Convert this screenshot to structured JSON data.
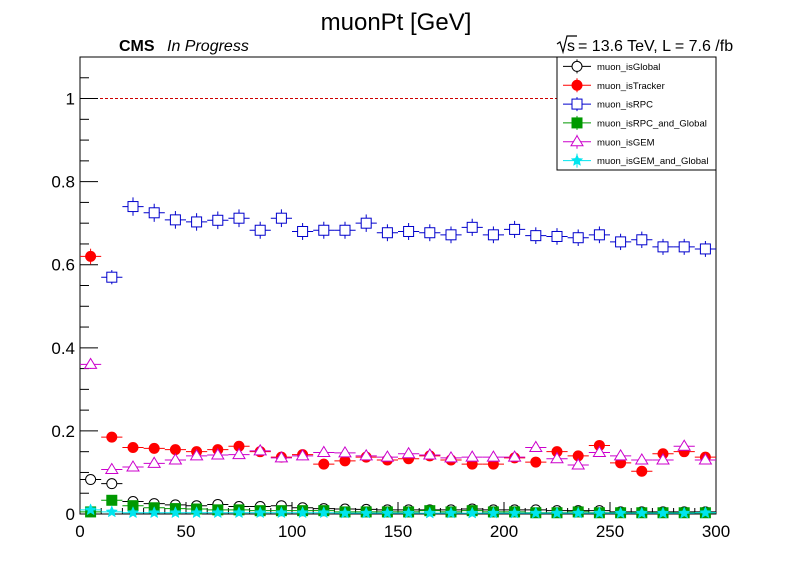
{
  "chart_data": {
    "type": "scatter",
    "title": "muonPt [GeV]",
    "cms_label": "CMS",
    "cms_sublabel": "In Progress",
    "energy_label": "= 13.6 TeV, L = 7.6 /fb",
    "sqrt_s_label": "s",
    "xlim": [
      0,
      300
    ],
    "ylim": [
      0,
      1.1
    ],
    "x_ticks": [
      0,
      50,
      100,
      150,
      200,
      250,
      300
    ],
    "x_tick_labels": [
      "0",
      "50",
      "100",
      "150",
      "200",
      "250",
      "300"
    ],
    "y_ticks": [
      0,
      0.2,
      0.4,
      0.6,
      0.8,
      1
    ],
    "y_tick_labels": [
      "0",
      "0.2",
      "0.4",
      "0.6",
      "0.8",
      "1"
    ],
    "reference_line": 1.0,
    "legend_position": "top-right",
    "bin_width": 10,
    "series": [
      {
        "name": "muon_isGlobal",
        "color": "#000000",
        "marker": "open-circle",
        "x": [
          5,
          15,
          25,
          35,
          45,
          55,
          65,
          75,
          85,
          95,
          105,
          115,
          125,
          135,
          145,
          155,
          165,
          175,
          185,
          195,
          205,
          215,
          225,
          235,
          245,
          255,
          265,
          275,
          285,
          295
        ],
        "y": [
          0.083,
          0.073,
          0.03,
          0.025,
          0.022,
          0.02,
          0.023,
          0.018,
          0.018,
          0.02,
          0.015,
          0.013,
          0.012,
          0.011,
          0.01,
          0.01,
          0.01,
          0.01,
          0.012,
          0.01,
          0.01,
          0.01,
          0.008,
          0.008,
          0.008,
          0.005,
          0.005,
          0.005,
          0.005,
          0.005
        ]
      },
      {
        "name": "muon_isTracker",
        "color": "#ff0000",
        "marker": "filled-circle",
        "x": [
          5,
          15,
          25,
          35,
          45,
          55,
          65,
          75,
          85,
          95,
          105,
          115,
          125,
          135,
          145,
          155,
          165,
          175,
          185,
          195,
          205,
          215,
          225,
          235,
          245,
          255,
          265,
          275,
          285,
          295
        ],
        "y": [
          0.62,
          0.185,
          0.16,
          0.158,
          0.155,
          0.15,
          0.155,
          0.163,
          0.15,
          0.137,
          0.143,
          0.12,
          0.128,
          0.137,
          0.13,
          0.133,
          0.14,
          0.13,
          0.12,
          0.12,
          0.135,
          0.125,
          0.15,
          0.14,
          0.165,
          0.123,
          0.103,
          0.145,
          0.15,
          0.137
        ]
      },
      {
        "name": "muon_isRPC",
        "color": "#0000cc",
        "marker": "open-square",
        "x": [
          15,
          25,
          35,
          45,
          55,
          65,
          75,
          85,
          95,
          105,
          115,
          125,
          135,
          145,
          155,
          165,
          175,
          185,
          195,
          205,
          215,
          225,
          235,
          245,
          255,
          265,
          275,
          285,
          295
        ],
        "y": [
          0.57,
          0.74,
          0.725,
          0.708,
          0.703,
          0.707,
          0.712,
          0.683,
          0.712,
          0.68,
          0.683,
          0.683,
          0.7,
          0.677,
          0.68,
          0.677,
          0.672,
          0.69,
          0.672,
          0.685,
          0.67,
          0.668,
          0.665,
          0.672,
          0.655,
          0.66,
          0.643,
          0.643,
          0.638
        ]
      },
      {
        "name": "muon_isRPC_and_Global",
        "color": "#009900",
        "marker": "filled-square",
        "x": [
          5,
          15,
          25,
          35,
          45,
          55,
          65,
          75,
          85,
          95,
          105,
          115,
          125,
          135,
          145,
          155,
          165,
          175,
          185,
          195,
          205,
          215,
          225,
          235,
          245,
          255,
          265,
          275,
          285,
          295
        ],
        "y": [
          0.005,
          0.033,
          0.02,
          0.015,
          0.013,
          0.012,
          0.01,
          0.01,
          0.008,
          0.008,
          0.008,
          0.008,
          0.005,
          0.005,
          0.005,
          0.005,
          0.008,
          0.005,
          0.008,
          0.005,
          0.005,
          0.003,
          0.003,
          0.005,
          0.003,
          0.003,
          0.003,
          0.003,
          0.003,
          0.003
        ]
      },
      {
        "name": "muon_isGEM",
        "color": "#cc00cc",
        "marker": "open-triangle",
        "x": [
          5,
          15,
          25,
          35,
          45,
          55,
          65,
          75,
          85,
          95,
          105,
          115,
          125,
          135,
          145,
          155,
          165,
          175,
          185,
          195,
          205,
          215,
          225,
          235,
          245,
          255,
          265,
          275,
          285,
          295
        ],
        "y": [
          0.36,
          0.107,
          0.113,
          0.122,
          0.13,
          0.14,
          0.142,
          0.143,
          0.152,
          0.135,
          0.14,
          0.148,
          0.147,
          0.14,
          0.137,
          0.145,
          0.142,
          0.135,
          0.137,
          0.137,
          0.137,
          0.16,
          0.133,
          0.118,
          0.148,
          0.14,
          0.13,
          0.13,
          0.163,
          0.13
        ]
      },
      {
        "name": "muon_isGEM_and_Global",
        "color": "#00e5ee",
        "marker": "star",
        "x": [
          5,
          15,
          25,
          35,
          45,
          55,
          65,
          75,
          85,
          95,
          105,
          115,
          125,
          135,
          145,
          155,
          165,
          175,
          185,
          195,
          205,
          215,
          225,
          235,
          245,
          255,
          265,
          275,
          285,
          295
        ],
        "y": [
          0.01,
          0.005,
          0.003,
          0.003,
          0.003,
          0.003,
          0.003,
          0.003,
          0.003,
          0.003,
          0.003,
          0.003,
          0.002,
          0.002,
          0.002,
          0.002,
          0.002,
          0.002,
          0.002,
          0.002,
          0.002,
          0.002,
          0.002,
          0.002,
          0.002,
          0.002,
          0.002,
          0.002,
          0.002,
          0.003
        ]
      }
    ]
  }
}
